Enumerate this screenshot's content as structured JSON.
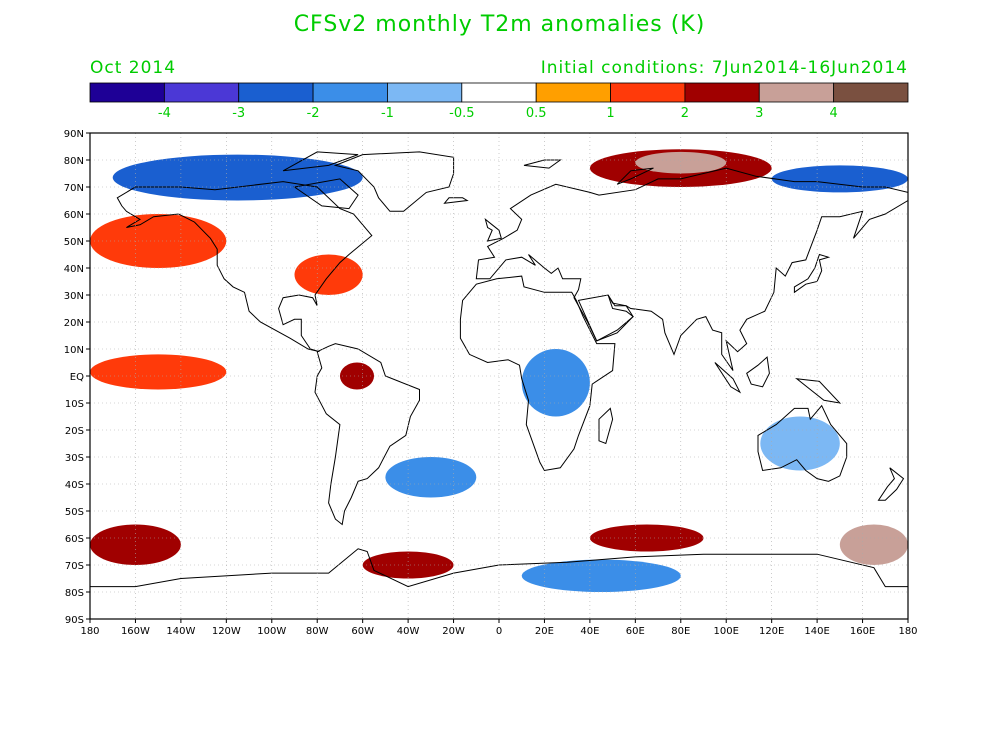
{
  "title": "CFSv2 monthly T2m anomalies (K)",
  "valid_month": "Oct 2014",
  "initial_conditions": "Initial conditions: 7Jun2014-16Jun2014",
  "colors": {
    "label_green": "#00cc00",
    "coastline": "#000000",
    "grid": "#aaaaaa"
  },
  "colorbar": {
    "boxes": [
      {
        "color": "#1e0096"
      },
      {
        "color": "#4b38d6"
      },
      {
        "color": "#1a5fd0"
      },
      {
        "color": "#3b8ee8"
      },
      {
        "color": "#7cb8f4"
      },
      {
        "color": "#ffffff"
      },
      {
        "color": "#ff9f00"
      },
      {
        "color": "#ff3a0a"
      },
      {
        "color": "#a00000"
      },
      {
        "color": "#c8a098"
      },
      {
        "color": "#7a5040"
      }
    ],
    "tick_labels": [
      "-4",
      "-3",
      "-2",
      "-1",
      "-0.5",
      "0.5",
      "1",
      "2",
      "3",
      "4"
    ]
  },
  "axes": {
    "lat_labels": [
      "90N",
      "80N",
      "70N",
      "60N",
      "50N",
      "40N",
      "30N",
      "20N",
      "10N",
      "EQ",
      "10S",
      "20S",
      "30S",
      "40S",
      "50S",
      "60S",
      "70S",
      "80S",
      "90S"
    ],
    "lon_labels": [
      "180",
      "160W",
      "140W",
      "120W",
      "100W",
      "80W",
      "60W",
      "40W",
      "20W",
      "0",
      "20E",
      "40E",
      "60E",
      "80E",
      "100E",
      "120E",
      "140E",
      "160E",
      "180"
    ]
  },
  "anomaly_regions": [
    {
      "name": "arctic-warm-siberia",
      "class": "2",
      "lon": [
        40,
        120
      ],
      "lat": [
        70,
        84
      ]
    },
    {
      "name": "arctic-strong-warm",
      "class": "3",
      "lon": [
        60,
        100
      ],
      "lat": [
        75,
        83
      ]
    },
    {
      "name": "arctic-cold-canada",
      "class": "-2",
      "lon": [
        -170,
        -60
      ],
      "lat": [
        65,
        82
      ]
    },
    {
      "name": "arctic-cold-east-siberia",
      "class": "-2",
      "lon": [
        120,
        180
      ],
      "lat": [
        68,
        78
      ]
    },
    {
      "name": "north-pacific-warm",
      "class": "1",
      "lon": [
        -180,
        -120
      ],
      "lat": [
        40,
        60
      ]
    },
    {
      "name": "us-east-warm",
      "class": "1",
      "lon": [
        -90,
        -60
      ],
      "lat": [
        30,
        45
      ]
    },
    {
      "name": "tropical-pacific-warm",
      "class": "1",
      "lon": [
        -180,
        -120
      ],
      "lat": [
        -5,
        8
      ]
    },
    {
      "name": "amazon-warm",
      "class": "2",
      "lon": [
        -70,
        -55
      ],
      "lat": [
        -5,
        5
      ]
    },
    {
      "name": "africa-cold",
      "class": "-1",
      "lon": [
        10,
        40
      ],
      "lat": [
        -15,
        10
      ]
    },
    {
      "name": "south-atlantic-cold",
      "class": "-1",
      "lon": [
        -50,
        -10
      ],
      "lat": [
        -45,
        -30
      ]
    },
    {
      "name": "australia-cold",
      "class": "-0.5",
      "lon": [
        115,
        150
      ],
      "lat": [
        -35,
        -15
      ]
    },
    {
      "name": "southern-ocean-warm-pacific",
      "class": "2",
      "lon": [
        -180,
        -140
      ],
      "lat": [
        -70,
        -55
      ]
    },
    {
      "name": "southern-ocean-warm-indian",
      "class": "2",
      "lon": [
        40,
        90
      ],
      "lat": [
        -65,
        -55
      ]
    },
    {
      "name": "southern-ocean-warm-east",
      "class": "3",
      "lon": [
        150,
        180
      ],
      "lat": [
        -70,
        -55
      ]
    },
    {
      "name": "antarctic-cold",
      "class": "-1",
      "lon": [
        10,
        80
      ],
      "lat": [
        -80,
        -68
      ]
    },
    {
      "name": "weddell-warm",
      "class": "2",
      "lon": [
        -60,
        -20
      ],
      "lat": [
        -75,
        -65
      ]
    }
  ]
}
